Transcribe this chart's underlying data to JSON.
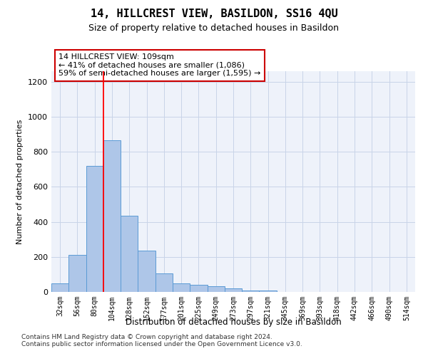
{
  "title": "14, HILLCREST VIEW, BASILDON, SS16 4QU",
  "subtitle": "Size of property relative to detached houses in Basildon",
  "xlabel": "Distribution of detached houses by size in Basildon",
  "ylabel": "Number of detached properties",
  "bar_labels": [
    "32sqm",
    "56sqm",
    "80sqm",
    "104sqm",
    "128sqm",
    "152sqm",
    "177sqm",
    "201sqm",
    "225sqm",
    "249sqm",
    "273sqm",
    "297sqm",
    "321sqm",
    "345sqm",
    "369sqm",
    "393sqm",
    "418sqm",
    "442sqm",
    "466sqm",
    "490sqm",
    "514sqm"
  ],
  "bar_values": [
    50,
    210,
    720,
    865,
    435,
    235,
    105,
    48,
    42,
    32,
    22,
    10,
    10,
    0,
    0,
    0,
    0,
    0,
    0,
    0,
    0
  ],
  "bar_color": "#aec6e8",
  "bar_edge_color": "#5b9bd5",
  "red_line_label_title": "14 HILLCREST VIEW: 109sqm",
  "red_line_label_line2": "← 41% of detached houses are smaller (1,086)",
  "red_line_label_line3": "59% of semi-detached houses are larger (1,595) →",
  "annotation_box_color": "#cc0000",
  "ylim": [
    0,
    1260
  ],
  "yticks": [
    0,
    200,
    400,
    600,
    800,
    1000,
    1200
  ],
  "grid_color": "#c8d4e8",
  "bg_color": "#eef2fa",
  "footer1": "Contains HM Land Registry data © Crown copyright and database right 2024.",
  "footer2": "Contains public sector information licensed under the Open Government Licence v3.0."
}
